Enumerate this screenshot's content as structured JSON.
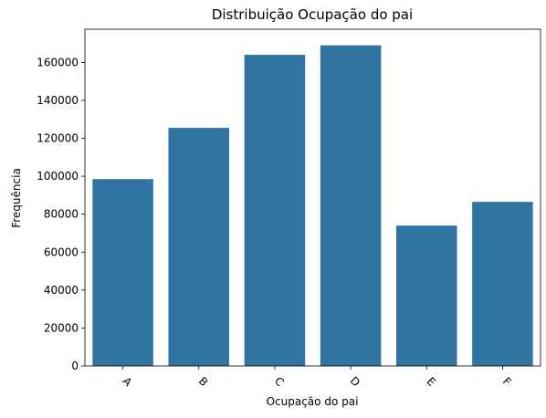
{
  "chart_data": {
    "type": "bar",
    "title": "Distribuição Ocupação do pai",
    "xlabel": "Ocupação do pai",
    "ylabel": "Frequência",
    "categories": [
      "A",
      "B",
      "C",
      "D",
      "E",
      "F"
    ],
    "values": [
      98500,
      125500,
      164000,
      169000,
      74000,
      86500
    ],
    "ylim": [
      0,
      177500
    ],
    "yticks": [
      0,
      20000,
      40000,
      60000,
      80000,
      100000,
      120000,
      140000,
      160000
    ],
    "ytick_labels": [
      "0",
      "20000",
      "40000",
      "60000",
      "80000",
      "100000",
      "120000",
      "140000",
      "160000"
    ],
    "x_tick_rotation": 45,
    "grid": false,
    "legend": "none",
    "bar_color": "#3274a1"
  }
}
